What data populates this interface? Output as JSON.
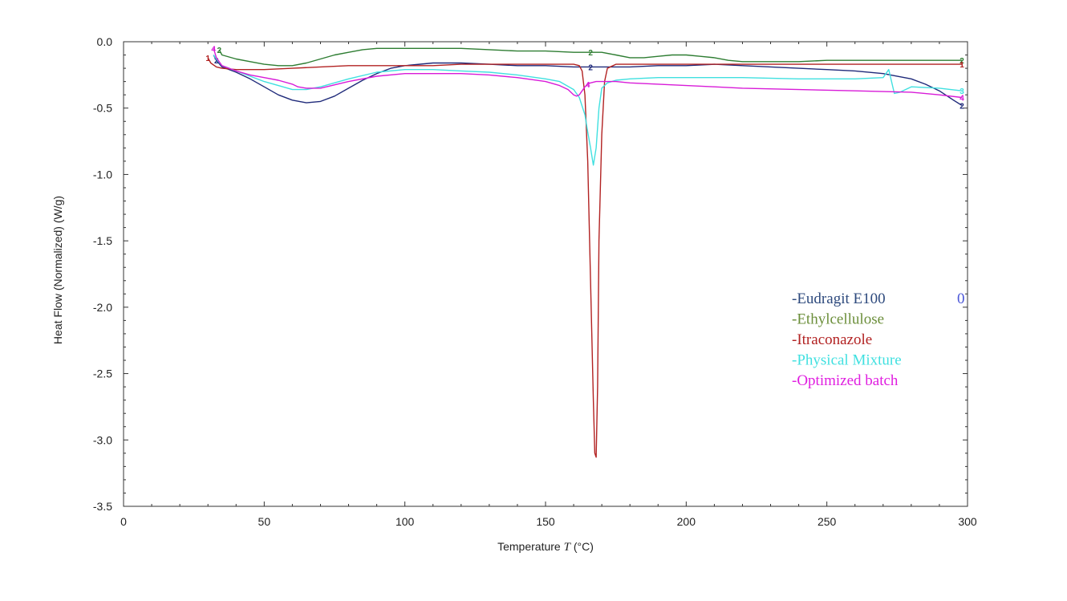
{
  "chart_data": {
    "type": "line",
    "title": "",
    "xlabel_prefix": "Temperature ",
    "xlabel_var": "T",
    "xlabel_suffix": " (°C)",
    "ylabel": "Heat Flow (Normalized)  (W/g)",
    "xlim": [
      0,
      300
    ],
    "ylim": [
      -3.5,
      0.0
    ],
    "x_ticks": [
      0,
      50,
      100,
      150,
      200,
      250,
      300
    ],
    "x_tick_labels": [
      "0",
      "50",
      "100",
      "150",
      "200",
      "250",
      "300"
    ],
    "y_ticks": [
      0.0,
      -0.5,
      -1.0,
      -1.5,
      -2.0,
      -2.5,
      -3.0,
      -3.5
    ],
    "y_tick_labels": [
      "0.0",
      "-0.5",
      "-1.0",
      "-1.5",
      "-2.0",
      "-2.5",
      "-3.0",
      "-3.5"
    ],
    "grid": false,
    "legend_position": "center-right",
    "stray_label": "0",
    "series": [
      {
        "name": "Eudragit E100",
        "legend_label": "-Eudragit E100",
        "color": "#1f2a7a",
        "legend_color": "#2e4a7d",
        "marker": "2",
        "marker_x": [
          33,
          166,
          298
        ],
        "x": [
          32,
          33,
          35,
          40,
          45,
          50,
          55,
          60,
          65,
          70,
          75,
          80,
          85,
          90,
          95,
          100,
          110,
          120,
          130,
          140,
          150,
          160,
          165,
          170,
          180,
          190,
          200,
          210,
          220,
          230,
          240,
          250,
          260,
          270,
          280,
          285,
          290,
          295,
          298
        ],
        "y": [
          -0.1,
          -0.14,
          -0.19,
          -0.23,
          -0.28,
          -0.34,
          -0.4,
          -0.44,
          -0.46,
          -0.45,
          -0.41,
          -0.35,
          -0.29,
          -0.24,
          -0.2,
          -0.18,
          -0.16,
          -0.16,
          -0.17,
          -0.18,
          -0.18,
          -0.19,
          -0.19,
          -0.19,
          -0.19,
          -0.18,
          -0.18,
          -0.17,
          -0.18,
          -0.19,
          -0.2,
          -0.21,
          -0.22,
          -0.24,
          -0.28,
          -0.32,
          -0.37,
          -0.44,
          -0.48
        ]
      },
      {
        "name": "Ethylcellulose",
        "legend_label": "-Ethylcellulose",
        "color": "#2e7d32",
        "legend_color": "#6b8e3a",
        "marker": "2",
        "marker_x": [
          34,
          166,
          298
        ],
        "x": [
          34,
          35,
          40,
          45,
          50,
          55,
          60,
          65,
          70,
          75,
          80,
          85,
          90,
          100,
          110,
          120,
          130,
          140,
          150,
          160,
          170,
          175,
          180,
          185,
          190,
          195,
          200,
          205,
          210,
          215,
          220,
          230,
          240,
          250,
          260,
          270,
          280,
          290,
          298
        ],
        "y": [
          -0.06,
          -0.1,
          -0.13,
          -0.15,
          -0.17,
          -0.18,
          -0.18,
          -0.16,
          -0.13,
          -0.1,
          -0.08,
          -0.06,
          -0.05,
          -0.05,
          -0.05,
          -0.05,
          -0.06,
          -0.07,
          -0.07,
          -0.08,
          -0.08,
          -0.1,
          -0.12,
          -0.12,
          -0.11,
          -0.1,
          -0.1,
          -0.11,
          -0.12,
          -0.14,
          -0.15,
          -0.15,
          -0.15,
          -0.14,
          -0.14,
          -0.14,
          -0.14,
          -0.14,
          -0.14
        ]
      },
      {
        "name": "Itraconazole",
        "legend_label": "-Itraconazole",
        "color": "#b22222",
        "legend_color": "#b22222",
        "marker": "1",
        "marker_x": [
          30,
          298
        ],
        "x": [
          30,
          31,
          33,
          35,
          40,
          50,
          60,
          70,
          80,
          90,
          100,
          110,
          120,
          130,
          140,
          150,
          155,
          160,
          162,
          163,
          164,
          165,
          166,
          167,
          167.5,
          168,
          168.5,
          169,
          170,
          171,
          172,
          175,
          180,
          190,
          200,
          220,
          240,
          260,
          280,
          298
        ],
        "y": [
          -0.12,
          -0.16,
          -0.19,
          -0.2,
          -0.21,
          -0.21,
          -0.2,
          -0.19,
          -0.18,
          -0.18,
          -0.18,
          -0.18,
          -0.17,
          -0.17,
          -0.17,
          -0.17,
          -0.17,
          -0.17,
          -0.18,
          -0.22,
          -0.4,
          -0.9,
          -1.8,
          -2.7,
          -3.1,
          -3.13,
          -2.6,
          -1.5,
          -0.7,
          -0.3,
          -0.2,
          -0.17,
          -0.17,
          -0.17,
          -0.17,
          -0.17,
          -0.17,
          -0.17,
          -0.17,
          -0.17
        ]
      },
      {
        "name": "Physical Mixture",
        "legend_label": "-Physical Mixture",
        "color": "#40e0e0",
        "legend_color": "#40e0e0",
        "marker": "3",
        "marker_x": [
          298
        ],
        "x": [
          32,
          33,
          35,
          40,
          45,
          50,
          55,
          60,
          65,
          70,
          80,
          90,
          100,
          110,
          120,
          130,
          140,
          150,
          155,
          160,
          162,
          164,
          165,
          166,
          167,
          168,
          169,
          170,
          172,
          175,
          180,
          190,
          200,
          220,
          240,
          260,
          270,
          272,
          273,
          274,
          276,
          280,
          290,
          298
        ],
        "y": [
          -0.1,
          -0.13,
          -0.18,
          -0.22,
          -0.26,
          -0.3,
          -0.33,
          -0.36,
          -0.36,
          -0.34,
          -0.28,
          -0.23,
          -0.21,
          -0.21,
          -0.22,
          -0.23,
          -0.25,
          -0.28,
          -0.3,
          -0.36,
          -0.42,
          -0.55,
          -0.68,
          -0.8,
          -0.93,
          -0.8,
          -0.5,
          -0.35,
          -0.31,
          -0.29,
          -0.28,
          -0.27,
          -0.27,
          -0.27,
          -0.28,
          -0.28,
          -0.27,
          -0.21,
          -0.3,
          -0.39,
          -0.38,
          -0.34,
          -0.35,
          -0.37
        ]
      },
      {
        "name": "Optimized batch",
        "legend_label": "-Optimized batch",
        "color": "#d81bd8",
        "legend_color": "#e01ee0",
        "marker": "4",
        "marker_x": [
          32,
          165,
          298
        ],
        "x": [
          32,
          33,
          35,
          40,
          45,
          50,
          55,
          60,
          62,
          65,
          70,
          80,
          90,
          100,
          110,
          120,
          130,
          140,
          150,
          155,
          158,
          160,
          161,
          162,
          163,
          164,
          165,
          166,
          168,
          170,
          175,
          180,
          190,
          200,
          210,
          220,
          240,
          260,
          280,
          290,
          298
        ],
        "y": [
          -0.05,
          -0.12,
          -0.18,
          -0.22,
          -0.25,
          -0.27,
          -0.29,
          -0.32,
          -0.34,
          -0.35,
          -0.35,
          -0.3,
          -0.26,
          -0.24,
          -0.24,
          -0.24,
          -0.25,
          -0.27,
          -0.3,
          -0.33,
          -0.36,
          -0.4,
          -0.41,
          -0.4,
          -0.37,
          -0.34,
          -0.32,
          -0.31,
          -0.3,
          -0.3,
          -0.3,
          -0.31,
          -0.32,
          -0.33,
          -0.34,
          -0.35,
          -0.36,
          -0.37,
          -0.38,
          -0.4,
          -0.42
        ]
      }
    ]
  }
}
